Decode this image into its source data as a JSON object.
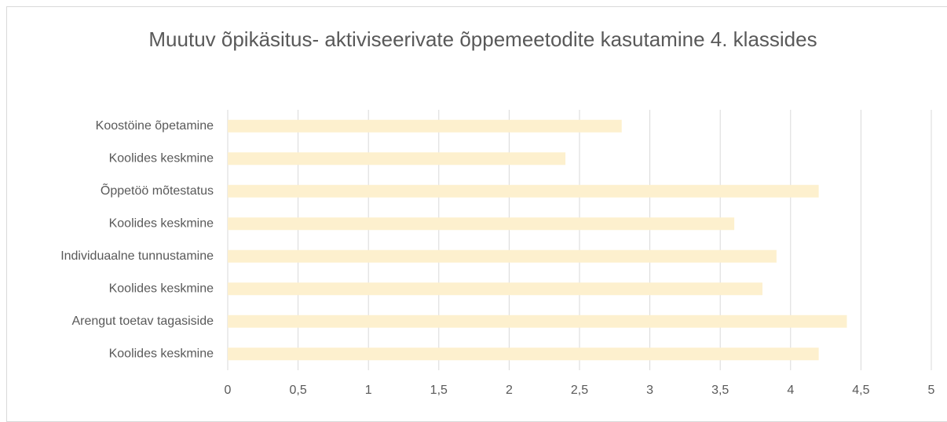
{
  "chart_data": {
    "type": "hbar",
    "title": "Muutuv õpikäsitus- aktiviseerivate õppemeetodite kasutamine 4. klassides",
    "categories": [
      "Koostöine õpetamine",
      "Koolides keskmine",
      "Õppetöö mõtestatus",
      "Koolides keskmine",
      "Individuaalne tunnustamine",
      "Koolides keskmine",
      "Arengut toetav tagasiside",
      "Koolides keskmine"
    ],
    "values": [
      2.8,
      2.4,
      4.2,
      3.6,
      3.9,
      3.8,
      4.4,
      4.2
    ],
    "color": "#fdf0ce",
    "xlim": [
      0,
      5
    ],
    "xticks": [
      0,
      {
        "value": 0.5,
        "label": "0,5"
      },
      1,
      {
        "value": 1.5,
        "label": "1,5"
      },
      2,
      {
        "value": 2.5,
        "label": "2,5"
      },
      3,
      {
        "value": 3.5,
        "label": "3,5"
      },
      4,
      {
        "value": 4.5,
        "label": "4,5"
      },
      5
    ],
    "grid": true
  }
}
